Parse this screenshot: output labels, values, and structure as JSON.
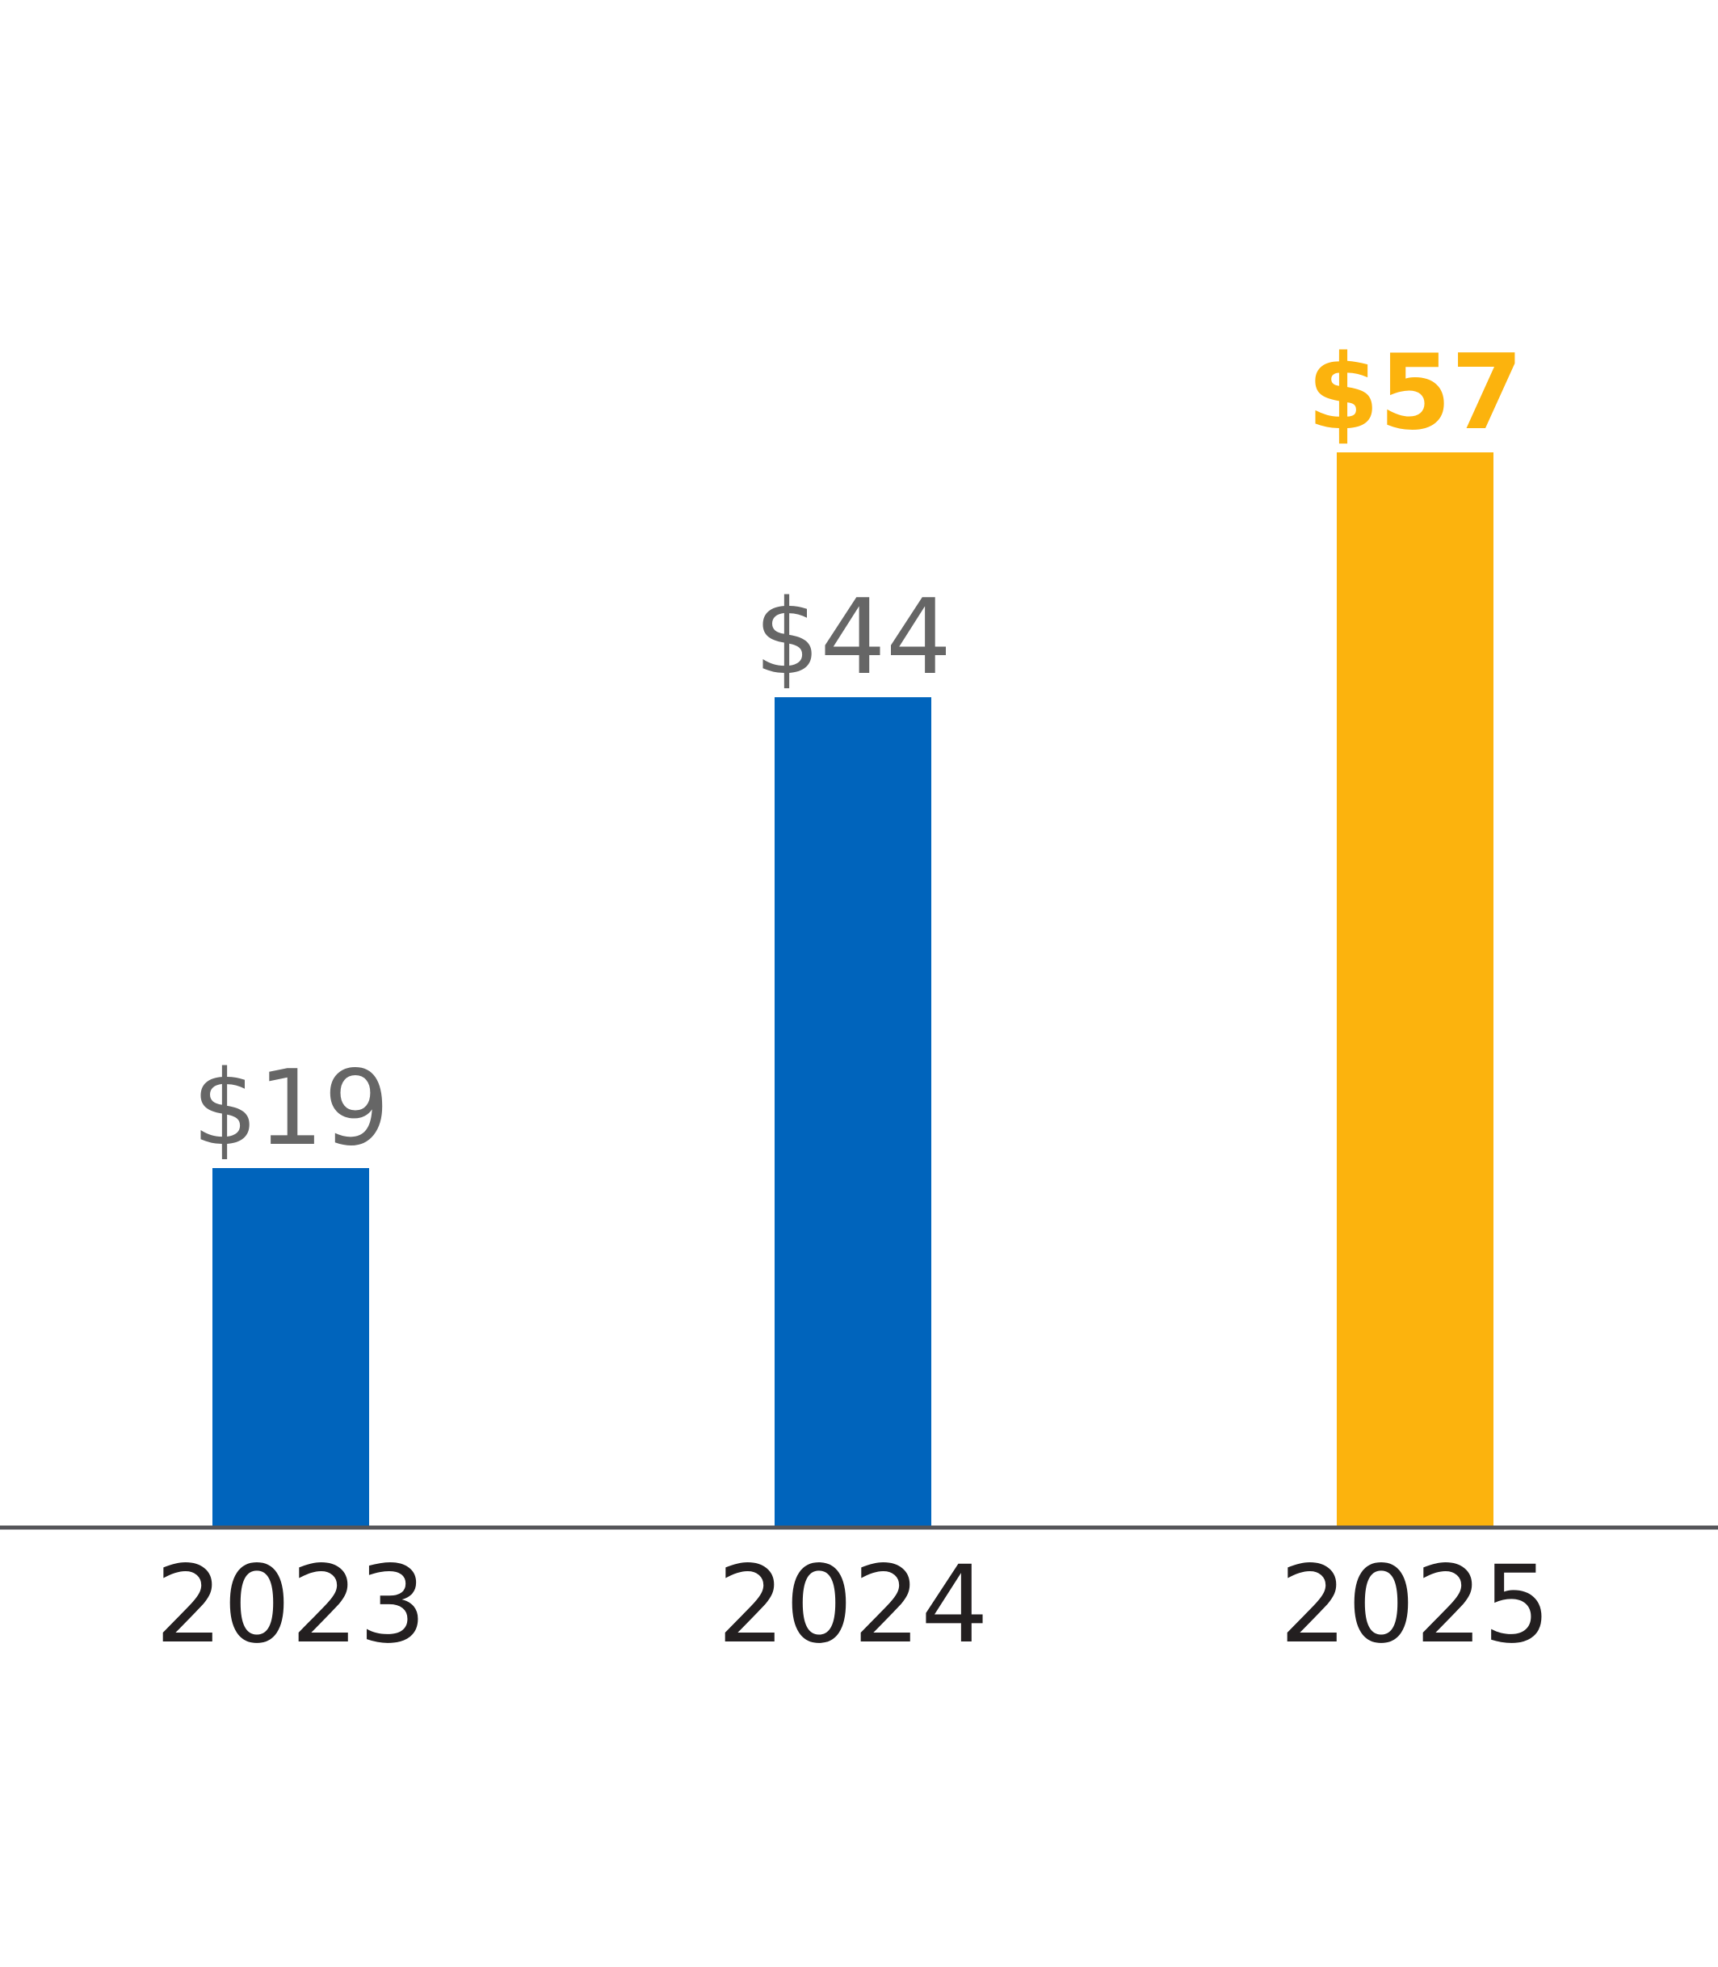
{
  "chart_data": {
    "type": "bar",
    "categories": [
      "2023",
      "2024",
      "2025"
    ],
    "values": [
      19,
      44,
      57
    ],
    "data_labels": [
      "$19",
      "$44",
      "$57"
    ],
    "highlight_index": 2,
    "title": "",
    "xlabel": "",
    "ylabel": "",
    "ylim": [
      0,
      57
    ],
    "grid": false,
    "legend": "none",
    "colors": {
      "bar": "#0064bc",
      "highlight": "#fcb30d",
      "label": "#666666",
      "highlight_label": "#fcb30d",
      "axis": "#555559",
      "category_label": "#231f20"
    }
  }
}
